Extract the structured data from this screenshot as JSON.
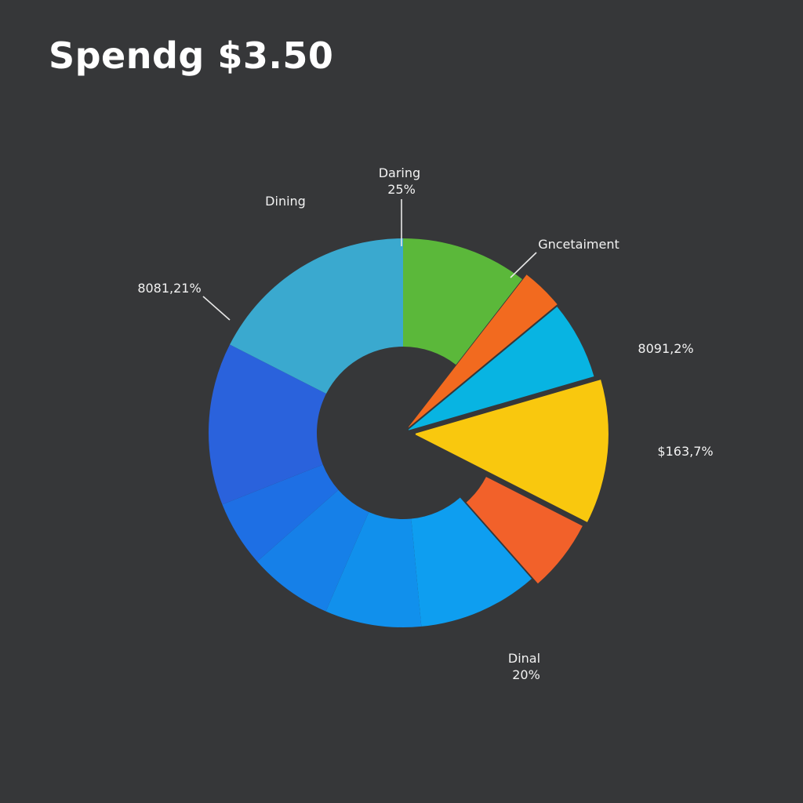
{
  "title": "Spendg $3.50",
  "chart_data": {
    "type": "pie",
    "donut": true,
    "title": "Spendg $3.50",
    "slices": [
      {
        "value": 10.5,
        "color": "#5bb83a"
      },
      {
        "value": 3.5,
        "color": "#f26a1f"
      },
      {
        "value": 6.5,
        "color": "#08b4e2"
      },
      {
        "value": 12.0,
        "color": "#f9c80e"
      },
      {
        "value": 6.0,
        "color": "#f2612a"
      },
      {
        "value": 10.0,
        "color": "#0e9ef0"
      },
      {
        "value": 8.0,
        "color": "#1190ec"
      },
      {
        "value": 7.0,
        "color": "#1680e8"
      },
      {
        "value": 5.5,
        "color": "#1e6fe4"
      },
      {
        "value": 13.5,
        "color": "#2a62dc"
      },
      {
        "value": 17.5,
        "color": "#3aa9cf"
      }
    ],
    "annotations": [
      {
        "lines": [
          "Daring",
          "25%"
        ]
      },
      {
        "lines": [
          "Dining"
        ]
      },
      {
        "lines": [
          "Gncetaiment"
        ]
      },
      {
        "lines": [
          "8081,21%"
        ]
      },
      {
        "lines": [
          "8091,2%"
        ]
      },
      {
        "lines": [
          "$163,7%"
        ]
      },
      {
        "lines": [
          "Dinal",
          "20%"
        ]
      }
    ]
  }
}
